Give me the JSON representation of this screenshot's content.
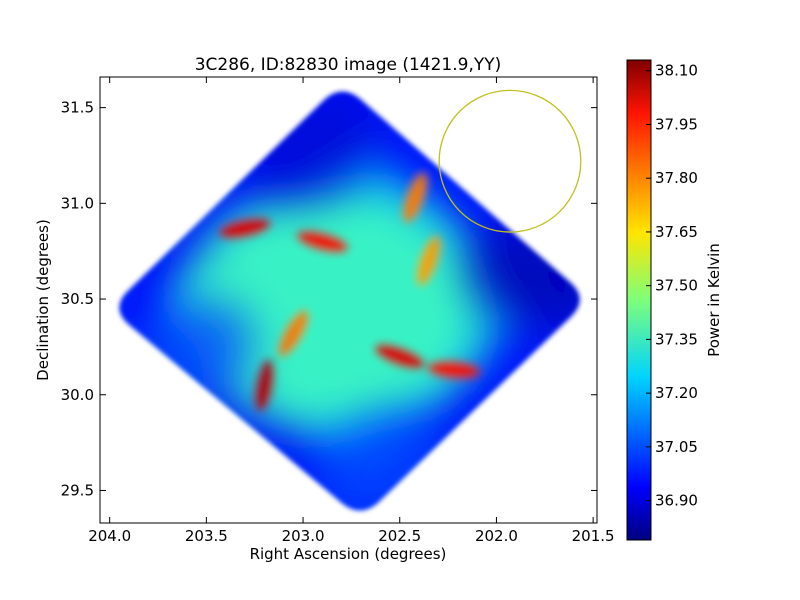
{
  "chart_data": {
    "type": "heatmap",
    "title": "3C286, ID:82830 image (1421.9,YY)",
    "xlabel": "Right Ascension (degrees)",
    "ylabel": "Declination (degrees)",
    "xlim": [
      204.05,
      201.48
    ],
    "ylim": [
      29.33,
      31.66
    ],
    "x_ticks": [
      204.0,
      203.5,
      203.0,
      202.5,
      202.0,
      201.5
    ],
    "x_tick_labels": [
      "204.0",
      "203.5",
      "203.0",
      "202.5",
      "202.0",
      "201.5"
    ],
    "y_ticks": [
      29.5,
      30.0,
      30.5,
      31.0,
      31.5
    ],
    "y_tick_labels": [
      "29.5",
      "30.0",
      "30.5",
      "31.0",
      "31.5"
    ],
    "colorbar": {
      "label": "Power in Kelvin",
      "range": [
        36.79,
        38.13
      ],
      "ticks": [
        36.9,
        37.05,
        37.2,
        37.35,
        37.5,
        37.65,
        37.8,
        37.95,
        38.1
      ],
      "tick_labels": [
        "36.90",
        "37.05",
        "37.20",
        "37.35",
        "37.50",
        "37.65",
        "37.80",
        "37.95",
        "38.10"
      ],
      "colormap": "jet"
    },
    "map_region": {
      "shape": "rounded-diamond",
      "corners": [
        [
          204.0,
          30.45
        ],
        [
          202.8,
          31.63
        ],
        [
          201.52,
          30.5
        ],
        [
          202.7,
          29.35
        ]
      ]
    },
    "background_level": 37.18,
    "features": [
      {
        "x": 203.3,
        "y": 30.87,
        "value": 38.0
      },
      {
        "x": 202.9,
        "y": 30.8,
        "value": 37.95
      },
      {
        "x": 202.42,
        "y": 31.03,
        "value": 37.8
      },
      {
        "x": 202.35,
        "y": 30.7,
        "value": 37.75
      },
      {
        "x": 202.5,
        "y": 30.2,
        "value": 38.0
      },
      {
        "x": 203.2,
        "y": 30.05,
        "value": 38.05
      },
      {
        "x": 203.05,
        "y": 30.32,
        "value": 37.8
      },
      {
        "x": 202.22,
        "y": 30.13,
        "value": 37.95
      },
      {
        "x": 202.95,
        "y": 31.3,
        "value": 36.9
      },
      {
        "x": 201.8,
        "y": 30.62,
        "value": 36.85
      },
      {
        "x": 203.6,
        "y": 30.2,
        "value": 37.05
      },
      {
        "x": 202.6,
        "y": 29.62,
        "value": 37.05
      }
    ],
    "overlay_circle": {
      "x": 201.93,
      "y": 31.22,
      "radius_deg": 0.37,
      "color": "#c0c020"
    }
  }
}
